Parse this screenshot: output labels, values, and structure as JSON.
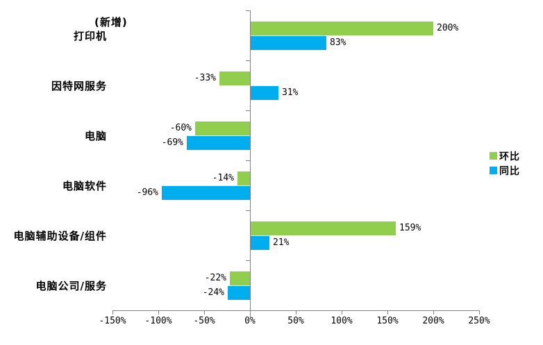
{
  "annotation": "(新增)",
  "legend": [
    {
      "label": "环比",
      "color": "#92CE4E"
    },
    {
      "label": "同比",
      "color": "#00AEEF"
    }
  ],
  "chart_data": {
    "type": "bar",
    "orientation": "horizontal",
    "title": "",
    "categories": [
      "打印机",
      "因特网服务",
      "电脑",
      "电脑软件",
      "电脑辅助设备/组件",
      "电脑公司/服务"
    ],
    "series": [
      {
        "name": "环比",
        "color": "#92CE4E",
        "values": [
          200,
          -33,
          -60,
          -14,
          159,
          -22
        ],
        "labels": [
          "200%",
          "-33%",
          "-60%",
          "-14%",
          "159%",
          "-22%"
        ]
      },
      {
        "name": "同比",
        "color": "#00AEEF",
        "values": [
          83,
          31,
          -69,
          -96,
          21,
          -24
        ],
        "labels": [
          "83%",
          "31%",
          "-69%",
          "-96%",
          "21%",
          "-24%"
        ]
      }
    ],
    "value_suffix": "%",
    "xlim": [
      -150,
      250
    ],
    "x_tick_step": 50,
    "x_ticks": [
      "-150%",
      "-100%",
      "-50%",
      "0%",
      "50%",
      "100%",
      "150%",
      "200%",
      "250%"
    ],
    "axis_color": "#808080",
    "grid": "off",
    "legend_position": "right"
  }
}
